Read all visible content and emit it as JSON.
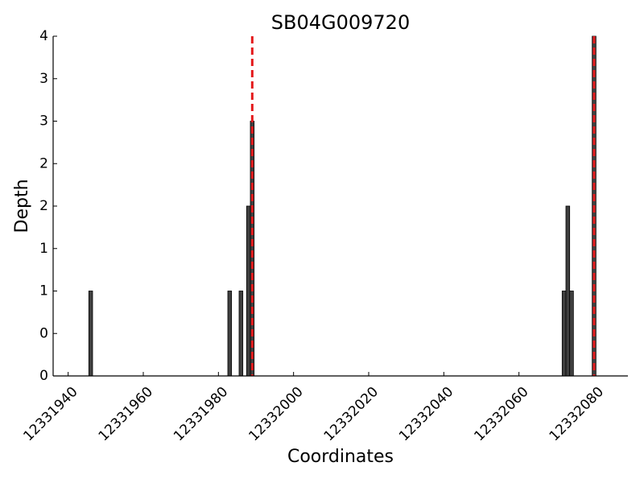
{
  "chart_data": {
    "type": "bar",
    "title": "SB04G009720",
    "x_label": "Coordinates",
    "y_label": "Depth",
    "x": [
      12331946,
      12331983,
      12331986,
      12331988,
      12331989,
      12332072,
      12332073,
      12332074,
      12332080
    ],
    "values": [
      1,
      1,
      1,
      2,
      3,
      1,
      2,
      1,
      4
    ],
    "color": "#404040",
    "vlines": [
      12331989,
      12332080
    ],
    "vline_color": "#e41a1c",
    "xlim": [
      12331936,
      12332089
    ],
    "xticks": [
      12331940,
      12331960,
      12331980,
      12332000,
      12332020,
      12332040,
      12332060,
      12332080
    ],
    "ylim": [
      0,
      4
    ],
    "yticks": [
      0,
      {
        "value": 0.5,
        "label": "0"
      },
      1,
      {
        "value": 1.5,
        "label": "1"
      },
      2,
      {
        "value": 2.5,
        "label": "2"
      },
      3,
      {
        "value": 3.5,
        "label": "3"
      },
      4
    ]
  }
}
